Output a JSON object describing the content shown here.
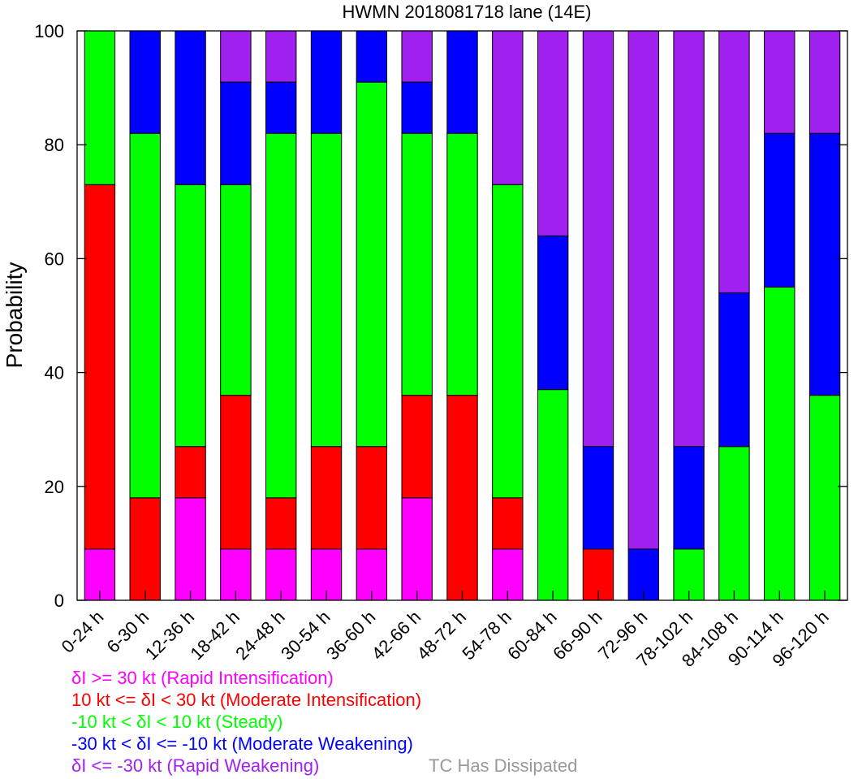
{
  "chart_data": {
    "type": "bar",
    "stacked": true,
    "title": "HWMN 2018081718 lane (14E)",
    "xlabel": "",
    "ylabel": "Probability",
    "ylim": [
      0,
      100
    ],
    "yticks": [
      0,
      20,
      40,
      60,
      80,
      100
    ],
    "grid": false,
    "categories": [
      "0-24 h",
      "6-30 h",
      "12-36 h",
      "18-42 h",
      "24-48 h",
      "30-54 h",
      "36-60 h",
      "42-66 h",
      "48-72 h",
      "54-78 h",
      "60-84 h",
      "66-90 h",
      "72-96 h",
      "78-102 h",
      "84-108 h",
      "90-114 h",
      "96-120 h"
    ],
    "series": [
      {
        "name": "δI >= 30 kt (Rapid Intensification)",
        "color": "#ff00ff",
        "values": [
          9,
          0,
          18,
          9,
          9,
          9,
          9,
          18,
          0,
          9,
          0,
          0,
          0,
          0,
          0,
          0,
          0
        ]
      },
      {
        "name": "10 kt <= δI < 30 kt (Moderate Intensification)",
        "color": "#ff0000",
        "values": [
          64,
          18,
          9,
          27,
          9,
          18,
          18,
          18,
          36,
          9,
          0,
          9,
          0,
          0,
          0,
          0,
          0
        ]
      },
      {
        "name": "-10 kt < δI < 10 kt (Steady)",
        "color": "#00ff00",
        "values": [
          27,
          64,
          46,
          37,
          64,
          55,
          64,
          46,
          46,
          55,
          37,
          0,
          0,
          9,
          27,
          55,
          36
        ]
      },
      {
        "name": "-30 kt < δI <= -10 kt (Moderate Weakening)",
        "color": "#0000ff",
        "values": [
          0,
          18,
          27,
          18,
          9,
          18,
          9,
          9,
          18,
          0,
          27,
          18,
          9,
          18,
          27,
          27,
          46
        ]
      },
      {
        "name": "δI <= -30 kt (Rapid Weakening)",
        "color": "#a020f0",
        "values": [
          0,
          0,
          0,
          9,
          9,
          0,
          0,
          9,
          0,
          27,
          36,
          73,
          91,
          73,
          46,
          18,
          18
        ]
      }
    ],
    "extra_legend": {
      "label": "TC Has Dissipated",
      "color": "#999999"
    }
  }
}
